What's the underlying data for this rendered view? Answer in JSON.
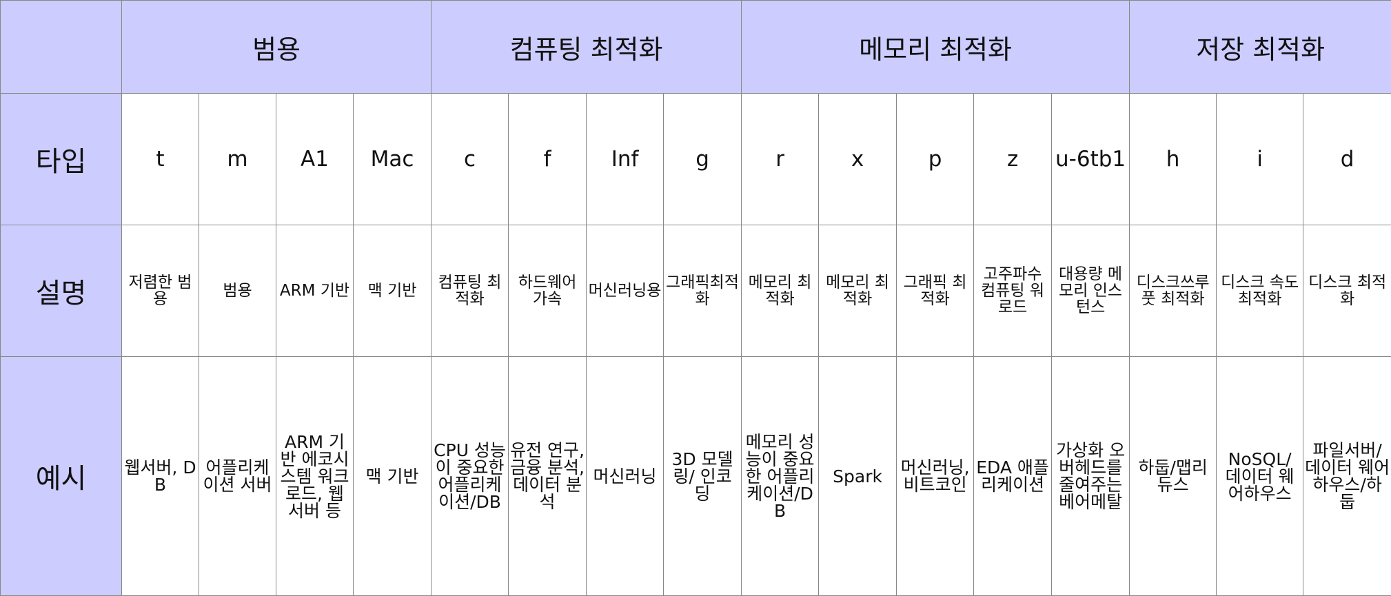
{
  "header": {
    "categories": [
      "범용",
      "컴퓨팅 최적화",
      "메모리 최적화",
      "저장 최적화"
    ]
  },
  "rows": {
    "type_label": "타입",
    "desc_label": "설명",
    "ex_label": "예시"
  },
  "types": [
    "t",
    "m",
    "A1",
    "Mac",
    "c",
    "f",
    "Inf",
    "g",
    "r",
    "x",
    "p",
    "z",
    "u-6tb1",
    "h",
    "i",
    "d"
  ],
  "descriptions": [
    "저렴한 범용",
    "범용",
    "ARM 기반",
    "맥 기반",
    "컴퓨팅 최적화",
    "하드웨어 가속",
    "머신러닝용",
    "그래픽최적화",
    "메모리 최적화",
    "메모리 최적화",
    "그래픽 최적화",
    "고주파수 컴퓨팅 워로드",
    "대용량 메모리 인스턴스",
    "디스크쓰루풋 최적화",
    "디스크 속도 최적화",
    "디스크 최적화"
  ],
  "examples": [
    "웹서버, DB",
    "어플리케이션 서버",
    "ARM 기반 에코시스템 워크로드, 웹서버 등",
    "맥 기반",
    "CPU 성능이 중요한 어플리케이션/DB",
    "유전 연구, 금융 분석, 데이터 분석",
    "머신러닝",
    "3D 모델링/ 인코딩",
    "메모리 성능이 중요한 어플리케이션/DB",
    "Spark",
    "머신러닝, 비트코인",
    "EDA 애플리케이션",
    "가상화 오버헤드를 줄여주는 베어메탈",
    "하둡/맵리듀스",
    "NoSQL/ 데이터 웨어하우스",
    "파일서버/ 데이터 웨어하우스/하둡"
  ],
  "colors": {
    "header_bg": "#ccccff",
    "border": "#888888"
  }
}
